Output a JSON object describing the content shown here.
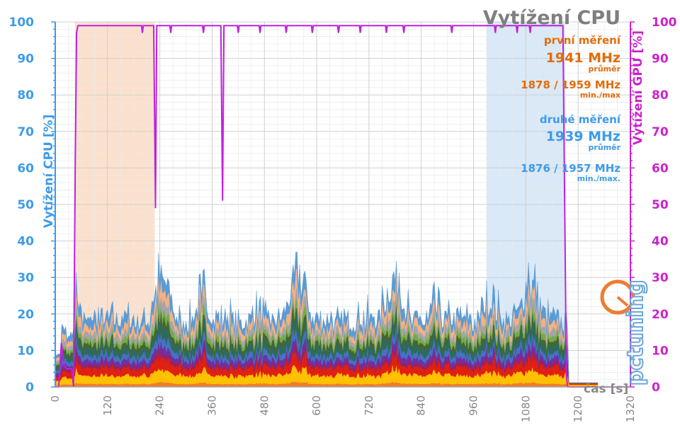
{
  "chart_data": {
    "type": "area",
    "title": "Vytížení CPU",
    "ylabel_left": "Vytížení CPU [%]",
    "ylabel_right": "Vytížení GPU [%]",
    "xlabel": "čas [s]",
    "xlim": [
      0,
      1320
    ],
    "ylim": [
      0,
      100
    ],
    "x_ticks": [
      "0",
      "120",
      "240",
      "360",
      "480",
      "600",
      "720",
      "840",
      "960",
      "1080",
      "1200",
      "1320"
    ],
    "y_ticks": [
      "0",
      "10",
      "20",
      "30",
      "40",
      "50",
      "60",
      "70",
      "80",
      "90",
      "100"
    ],
    "grid": true,
    "shaded_regions": [
      {
        "name": "první měření",
        "x_start": 45,
        "x_end": 228,
        "color": "#fbe1cd"
      },
      {
        "name": "druhé měření",
        "x_start": 990,
        "x_end": 1170,
        "color": "#d9e9f8"
      }
    ],
    "gpu_series": {
      "name": "GPU",
      "color": "#c020e0",
      "points": [
        [
          0,
          0
        ],
        [
          8,
          0
        ],
        [
          14,
          12
        ],
        [
          20,
          6
        ],
        [
          26,
          5
        ],
        [
          38,
          5
        ],
        [
          42,
          0
        ],
        [
          46,
          63
        ],
        [
          49,
          97
        ],
        [
          52,
          99
        ],
        [
          226,
          99
        ],
        [
          230,
          49
        ],
        [
          233,
          99
        ],
        [
          380,
          99
        ],
        [
          384,
          51
        ],
        [
          387,
          99
        ],
        [
          1165,
          99
        ],
        [
          1173,
          3
        ],
        [
          1176,
          0
        ],
        [
          1320,
          0
        ]
      ],
      "dips": [
        200,
        265,
        340,
        420,
        470,
        530,
        590,
        650,
        700,
        760,
        800,
        910,
        1010,
        1060,
        1090
      ]
    },
    "cpu_bands": [
      {
        "color": "#ed7d31",
        "mean": 1.2,
        "amp": 0.2
      },
      {
        "color": "#ffc000",
        "mean": 2.8,
        "amp": 1.6
      },
      {
        "color": "#e02010",
        "mean": 2.4,
        "amp": 1.8
      },
      {
        "color": "#9a2060",
        "mean": 0.9,
        "amp": 0.6
      },
      {
        "color": "#7030a0",
        "mean": 1.6,
        "amp": 1.0
      },
      {
        "color": "#4472c4",
        "mean": 1.6,
        "amp": 1.2
      },
      {
        "color": "#2f6a5a",
        "mean": 2.4,
        "amp": 2.0
      },
      {
        "color": "#4f6228",
        "mean": 1.0,
        "amp": 0.9
      },
      {
        "color": "#70ad47",
        "mean": 1.2,
        "amp": 1.1
      },
      {
        "color": "#a5a5a5",
        "mean": 1.6,
        "amp": 1.5
      },
      {
        "color": "#f4b183",
        "mean": 1.7,
        "amp": 1.7
      },
      {
        "color": "#5b9bd5",
        "mean": 1.6,
        "amp": 2.6
      }
    ],
    "cpu_active_range": [
      45,
      1170
    ],
    "cpu_peak": 37,
    "cpu_idle_level": 1.0
  },
  "annotations": {
    "first_label": "první měření",
    "first_avg": "1941 MHz",
    "first_avg_sub": "průměr",
    "first_minmax": "1878 / 1959 MHz",
    "first_minmax_sub": "min./max",
    "second_label": "druhé měření",
    "second_avg": "1939 MHz",
    "second_avg_sub": "průměr",
    "second_minmax": "1876 / 1957 MHz",
    "second_minmax_sub": "min./max.",
    "first_color": "#e36c09",
    "second_color": "#3d9be9"
  },
  "logo": {
    "text": "pctuning",
    "icon": "pctuning-logo-icon"
  }
}
